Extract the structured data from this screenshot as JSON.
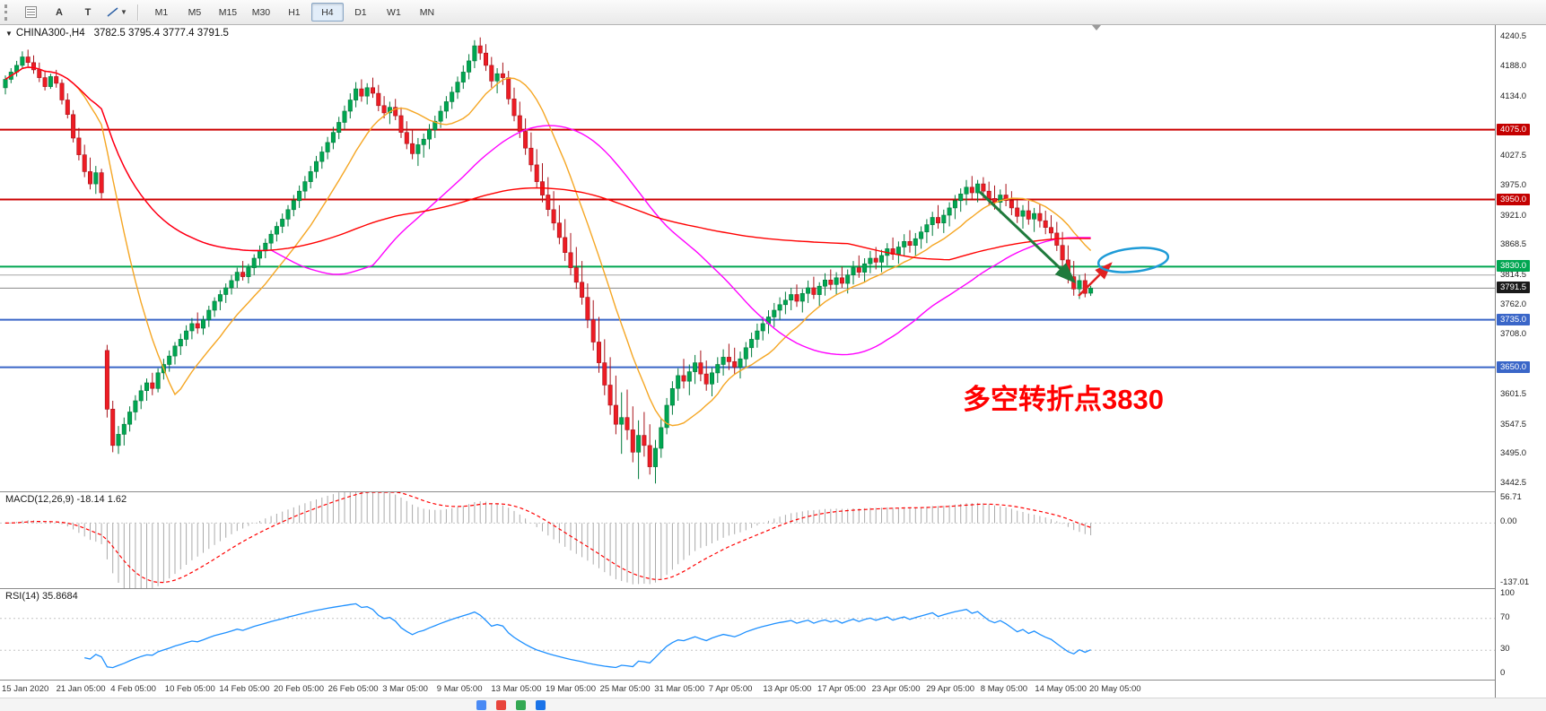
{
  "toolbar": {
    "tool_a": "A",
    "tool_t": "T",
    "timeframes": [
      "M1",
      "M5",
      "M15",
      "M30",
      "H1",
      "H4",
      "D1",
      "W1",
      "MN"
    ],
    "active_timeframe": "H4"
  },
  "chart": {
    "title": "CHINA300-,H4",
    "ohlc": "3782.5 3795.4 3777.4 3791.5",
    "annotation_text": "多空转折点3830",
    "annotation_color": "#ff0000",
    "colors": {
      "up_fill": "#00a651",
      "up_stroke": "#007a3b",
      "down_fill": "#ed1c24",
      "down_stroke": "#a8121a",
      "ma_fast": "#f5a623",
      "ma_mid": "#ff00ff",
      "ma_slow": "#ff0000",
      "green_arrow": "#1f7a3c",
      "red_arrow": "#e02020",
      "ellipse": "#1e9bd7"
    }
  },
  "macd": {
    "label": "MACD(12,26,9)",
    "main_value": "-18.14",
    "signal_value": "1.62",
    "scale": [
      "56.71",
      "0.00",
      "-137.01"
    ],
    "fast": 12,
    "slow": 26,
    "signal": 9
  },
  "rsi": {
    "label": "RSI(14)",
    "value": "35.8684",
    "period": 14,
    "levels": [
      70,
      30
    ],
    "scale": [
      "100",
      "70",
      "30",
      "0"
    ]
  },
  "chart_data": {
    "type": "candlestick",
    "symbol": "CHINA300",
    "timeframe": "H4",
    "last_price": 3791.5,
    "price_axis_range": [
      3428,
      4262
    ],
    "price_ticks": [
      4240.5,
      4188.0,
      4134.0,
      4027.5,
      3975.0,
      3921.0,
      3868.5,
      3814.5,
      3762.0,
      3708.0,
      3601.5,
      3547.5,
      3495.0,
      3442.5
    ],
    "price_badges": [
      {
        "price": 4075.0,
        "label": "4075.0",
        "bg": "#c40000"
      },
      {
        "price": 3950.0,
        "label": "3950.0",
        "bg": "#c40000"
      },
      {
        "price": 3830.0,
        "label": "3830.0",
        "bg": "#00a651"
      },
      {
        "price": 3791.5,
        "label": "3791.5",
        "bg": "#1a1a1a"
      },
      {
        "price": 3735.0,
        "label": "3735.0",
        "bg": "#3a66c8"
      },
      {
        "price": 3650.0,
        "label": "3650.0",
        "bg": "#3a66c8"
      }
    ],
    "hlines": [
      {
        "price": 4075.0,
        "color": "#cc0000",
        "width": 2
      },
      {
        "price": 3950.0,
        "color": "#cc0000",
        "width": 2
      },
      {
        "price": 3830.0,
        "color": "#00a651",
        "width": 2
      },
      {
        "price": 3815.0,
        "color": "#a6a6a6",
        "width": 1
      },
      {
        "price": 3791.5,
        "color": "#8a8a8a",
        "width": 1
      },
      {
        "price": 3735.0,
        "color": "#3a66c8",
        "width": 2
      },
      {
        "price": 3650.0,
        "color": "#3a66c8",
        "width": 2
      }
    ],
    "moving_averages": [
      {
        "period": 13,
        "color": "#f5a623"
      },
      {
        "period": 48,
        "color": "#ff00ff"
      },
      {
        "period": 150,
        "color": "#ff0000"
      }
    ],
    "time_axis": [
      "15 Jan 2020",
      "21 Jan 05:00",
      "4 Feb 05:00",
      "10 Feb 05:00",
      "14 Feb 05:00",
      "20 Feb 05:00",
      "26 Feb 05:00",
      "3 Mar 05:00",
      "9 Mar 05:00",
      "13 Mar 05:00",
      "19 Mar 05:00",
      "25 Mar 05:00",
      "31 Mar 05:00",
      "7 Apr 05:00",
      "13 Apr 05:00",
      "17 Apr 05:00",
      "23 Apr 05:00",
      "29 Apr 05:00",
      "8 May 05:00",
      "14 May 05:00",
      "20 May 05:00"
    ],
    "candles": [
      [
        4150,
        4172,
        4138,
        4165
      ],
      [
        4165,
        4185,
        4158,
        4178
      ],
      [
        4178,
        4198,
        4170,
        4190
      ],
      [
        4190,
        4215,
        4185,
        4205
      ],
      [
        4205,
        4218,
        4188,
        4195
      ],
      [
        4195,
        4208,
        4175,
        4182
      ],
      [
        4182,
        4195,
        4160,
        4168
      ],
      [
        4168,
        4180,
        4145,
        4152
      ],
      [
        4152,
        4175,
        4148,
        4170
      ],
      [
        4170,
        4182,
        4150,
        4158
      ],
      [
        4158,
        4165,
        4120,
        4128
      ],
      [
        4128,
        4140,
        4095,
        4102
      ],
      [
        4102,
        4110,
        4052,
        4060
      ],
      [
        4060,
        4078,
        4020,
        4030
      ],
      [
        4030,
        4048,
        3990,
        4000
      ],
      [
        4000,
        4025,
        3968,
        3978
      ],
      [
        3978,
        4010,
        3960,
        3998
      ],
      [
        3998,
        4005,
        3952,
        3962
      ],
      [
        3680,
        3690,
        3560,
        3575
      ],
      [
        3575,
        3590,
        3498,
        3510
      ],
      [
        3510,
        3545,
        3495,
        3530
      ],
      [
        3530,
        3560,
        3510,
        3548
      ],
      [
        3548,
        3580,
        3535,
        3570
      ],
      [
        3570,
        3600,
        3555,
        3590
      ],
      [
        3590,
        3618,
        3575,
        3608
      ],
      [
        3608,
        3630,
        3590,
        3622
      ],
      [
        3622,
        3640,
        3600,
        3612
      ],
      [
        3612,
        3648,
        3605,
        3640
      ],
      [
        3640,
        3665,
        3628,
        3655
      ],
      [
        3655,
        3680,
        3642,
        3670
      ],
      [
        3670,
        3695,
        3655,
        3688
      ],
      [
        3688,
        3710,
        3672,
        3700
      ],
      [
        3700,
        3725,
        3688,
        3715
      ],
      [
        3715,
        3738,
        3700,
        3728
      ],
      [
        3728,
        3748,
        3710,
        3720
      ],
      [
        3720,
        3742,
        3708,
        3735
      ],
      [
        3735,
        3760,
        3722,
        3752
      ],
      [
        3752,
        3775,
        3740,
        3768
      ],
      [
        3768,
        3788,
        3752,
        3780
      ],
      [
        3780,
        3800,
        3765,
        3792
      ],
      [
        3792,
        3815,
        3780,
        3805
      ],
      [
        3805,
        3828,
        3792,
        3820
      ],
      [
        3820,
        3840,
        3805,
        3812
      ],
      [
        3812,
        3835,
        3800,
        3828
      ],
      [
        3828,
        3852,
        3815,
        3845
      ],
      [
        3845,
        3868,
        3832,
        3858
      ],
      [
        3858,
        3880,
        3845,
        3872
      ],
      [
        3872,
        3895,
        3860,
        3888
      ],
      [
        3888,
        3910,
        3875,
        3902
      ],
      [
        3902,
        3925,
        3890,
        3915
      ],
      [
        3915,
        3940,
        3902,
        3932
      ],
      [
        3932,
        3958,
        3920,
        3948
      ],
      [
        3948,
        3975,
        3935,
        3965
      ],
      [
        3965,
        3992,
        3952,
        3982
      ],
      [
        3982,
        4010,
        3970,
        4000
      ],
      [
        4000,
        4028,
        3988,
        4018
      ],
      [
        4018,
        4045,
        4005,
        4035
      ],
      [
        4035,
        4062,
        4022,
        4052
      ],
      [
        4052,
        4080,
        4040,
        4070
      ],
      [
        4070,
        4098,
        4058,
        4088
      ],
      [
        4088,
        4118,
        4075,
        4108
      ],
      [
        4108,
        4140,
        4095,
        4128
      ],
      [
        4128,
        4160,
        4115,
        4148
      ],
      [
        4148,
        4165,
        4125,
        4135
      ],
      [
        4135,
        4158,
        4120,
        4150
      ],
      [
        4150,
        4168,
        4132,
        4140
      ],
      [
        4140,
        4155,
        4108,
        4118
      ],
      [
        4118,
        4135,
        4095,
        4105
      ],
      [
        4105,
        4125,
        4085,
        4115
      ],
      [
        4115,
        4130,
        4092,
        4100
      ],
      [
        4100,
        4115,
        4060,
        4070
      ],
      [
        4070,
        4090,
        4040,
        4050
      ],
      [
        4050,
        4075,
        4022,
        4032
      ],
      [
        4032,
        4060,
        4010,
        4048
      ],
      [
        4048,
        4068,
        4025,
        4058
      ],
      [
        4058,
        4085,
        4040,
        4075
      ],
      [
        4075,
        4100,
        4060,
        4090
      ],
      [
        4090,
        4118,
        4078,
        4108
      ],
      [
        4108,
        4135,
        4095,
        4125
      ],
      [
        4125,
        4152,
        4112,
        4142
      ],
      [
        4142,
        4170,
        4130,
        4160
      ],
      [
        4160,
        4190,
        4148,
        4178
      ],
      [
        4178,
        4210,
        4165,
        4198
      ],
      [
        4198,
        4235,
        4185,
        4225
      ],
      [
        4225,
        4240,
        4200,
        4212
      ],
      [
        4212,
        4228,
        4180,
        4190
      ],
      [
        4190,
        4205,
        4150,
        4162
      ],
      [
        4162,
        4185,
        4140,
        4175
      ],
      [
        4175,
        4195,
        4155,
        4168
      ],
      [
        4168,
        4180,
        4120,
        4130
      ],
      [
        4130,
        4150,
        4090,
        4100
      ],
      [
        4100,
        4125,
        4060,
        4072
      ],
      [
        4072,
        4095,
        4030,
        4042
      ],
      [
        4042,
        4070,
        4000,
        4012
      ],
      [
        4012,
        4040,
        3970,
        3982
      ],
      [
        3982,
        4015,
        3945,
        3958
      ],
      [
        3958,
        3990,
        3920,
        3932
      ],
      [
        3932,
        3965,
        3895,
        3908
      ],
      [
        3908,
        3940,
        3870,
        3882
      ],
      [
        3882,
        3915,
        3840,
        3855
      ],
      [
        3855,
        3890,
        3815,
        3828
      ],
      [
        3828,
        3865,
        3790,
        3802
      ],
      [
        3802,
        3840,
        3762,
        3775
      ],
      [
        3775,
        3800,
        3720,
        3735
      ],
      [
        3735,
        3770,
        3680,
        3695
      ],
      [
        3695,
        3740,
        3640,
        3658
      ],
      [
        3658,
        3700,
        3600,
        3618
      ],
      [
        3618,
        3668,
        3565,
        3582
      ],
      [
        3582,
        3635,
        3530,
        3548
      ],
      [
        3548,
        3605,
        3495,
        3560
      ],
      [
        3560,
        3610,
        3520,
        3538
      ],
      [
        3538,
        3580,
        3480,
        3498
      ],
      [
        3498,
        3555,
        3450,
        3528
      ],
      [
        3528,
        3570,
        3490,
        3510
      ],
      [
        3510,
        3548,
        3458,
        3472
      ],
      [
        3472,
        3520,
        3442,
        3505
      ],
      [
        3505,
        3558,
        3488,
        3542
      ],
      [
        3542,
        3595,
        3530,
        3582
      ],
      [
        3582,
        3625,
        3565,
        3612
      ],
      [
        3612,
        3648,
        3590,
        3635
      ],
      [
        3635,
        3665,
        3612,
        3625
      ],
      [
        3625,
        3655,
        3600,
        3642
      ],
      [
        3642,
        3672,
        3620,
        3658
      ],
      [
        3658,
        3680,
        3625,
        3638
      ],
      [
        3638,
        3662,
        3608,
        3620
      ],
      [
        3620,
        3650,
        3598,
        3640
      ],
      [
        3640,
        3668,
        3622,
        3655
      ],
      [
        3655,
        3682,
        3635,
        3668
      ],
      [
        3668,
        3692,
        3645,
        3660
      ],
      [
        3660,
        3685,
        3638,
        3650
      ],
      [
        3650,
        3678,
        3630,
        3665
      ],
      [
        3665,
        3695,
        3650,
        3685
      ],
      [
        3685,
        3712,
        3668,
        3700
      ],
      [
        3700,
        3728,
        3685,
        3715
      ],
      [
        3715,
        3740,
        3698,
        3728
      ],
      [
        3728,
        3752,
        3710,
        3740
      ],
      [
        3740,
        3765,
        3722,
        3752
      ],
      [
        3752,
        3775,
        3735,
        3762
      ],
      [
        3762,
        3785,
        3745,
        3770
      ],
      [
        3770,
        3792,
        3752,
        3780
      ],
      [
        3780,
        3798,
        3758,
        3768
      ],
      [
        3768,
        3790,
        3748,
        3782
      ],
      [
        3782,
        3805,
        3765,
        3792
      ],
      [
        3792,
        3812,
        3772,
        3780
      ],
      [
        3780,
        3802,
        3760,
        3795
      ],
      [
        3795,
        3818,
        3778,
        3806
      ],
      [
        3806,
        3825,
        3788,
        3798
      ],
      [
        3798,
        3820,
        3780,
        3810
      ],
      [
        3810,
        3830,
        3792,
        3800
      ],
      [
        3800,
        3825,
        3782,
        3815
      ],
      [
        3815,
        3840,
        3798,
        3828
      ],
      [
        3828,
        3850,
        3810,
        3820
      ],
      [
        3820,
        3845,
        3802,
        3835
      ],
      [
        3835,
        3858,
        3818,
        3845
      ],
      [
        3845,
        3865,
        3825,
        3838
      ],
      [
        3838,
        3860,
        3820,
        3850
      ],
      [
        3850,
        3872,
        3832,
        3862
      ],
      [
        3862,
        3882,
        3842,
        3852
      ],
      [
        3852,
        3875,
        3835,
        3865
      ],
      [
        3865,
        3888,
        3848,
        3875
      ],
      [
        3875,
        3895,
        3855,
        3868
      ],
      [
        3868,
        3890,
        3850,
        3880
      ],
      [
        3880,
        3902,
        3862,
        3892
      ],
      [
        3892,
        3915,
        3872,
        3905
      ],
      [
        3905,
        3928,
        3885,
        3918
      ],
      [
        3918,
        3940,
        3898,
        3908
      ],
      [
        3908,
        3932,
        3890,
        3922
      ],
      [
        3922,
        3945,
        3902,
        3935
      ],
      [
        3935,
        3958,
        3915,
        3948
      ],
      [
        3948,
        3970,
        3928,
        3960
      ],
      [
        3960,
        3985,
        3940,
        3972
      ],
      [
        3972,
        3992,
        3950,
        3962
      ],
      [
        3962,
        3985,
        3945,
        3978
      ],
      [
        3978,
        3990,
        3952,
        3965
      ],
      [
        3965,
        3982,
        3940,
        3952
      ],
      [
        3952,
        3975,
        3932,
        3945
      ],
      [
        3945,
        3968,
        3925,
        3958
      ],
      [
        3958,
        3978,
        3938,
        3948
      ],
      [
        3948,
        3965,
        3922,
        3935
      ],
      [
        3935,
        3952,
        3908,
        3920
      ],
      [
        3920,
        3940,
        3898,
        3930
      ],
      [
        3930,
        3948,
        3905,
        3915
      ],
      [
        3915,
        3935,
        3892,
        3925
      ],
      [
        3925,
        3942,
        3900,
        3912
      ],
      [
        3912,
        3930,
        3888,
        3900
      ],
      [
        3900,
        3922,
        3878,
        3890
      ],
      [
        3890,
        3910,
        3858,
        3868
      ],
      [
        3868,
        3892,
        3830,
        3842
      ],
      [
        3842,
        3868,
        3800,
        3812
      ],
      [
        3812,
        3840,
        3778,
        3790
      ],
      [
        3790,
        3815,
        3772,
        3805
      ],
      [
        3805,
        3818,
        3775,
        3782
      ],
      [
        3782.5,
        3795.4,
        3777.4,
        3791.5
      ]
    ]
  },
  "taskbar": {
    "icon_colors": [
      "#4a8af4",
      "#e8453c",
      "#34a853",
      "#1a73e8"
    ]
  }
}
